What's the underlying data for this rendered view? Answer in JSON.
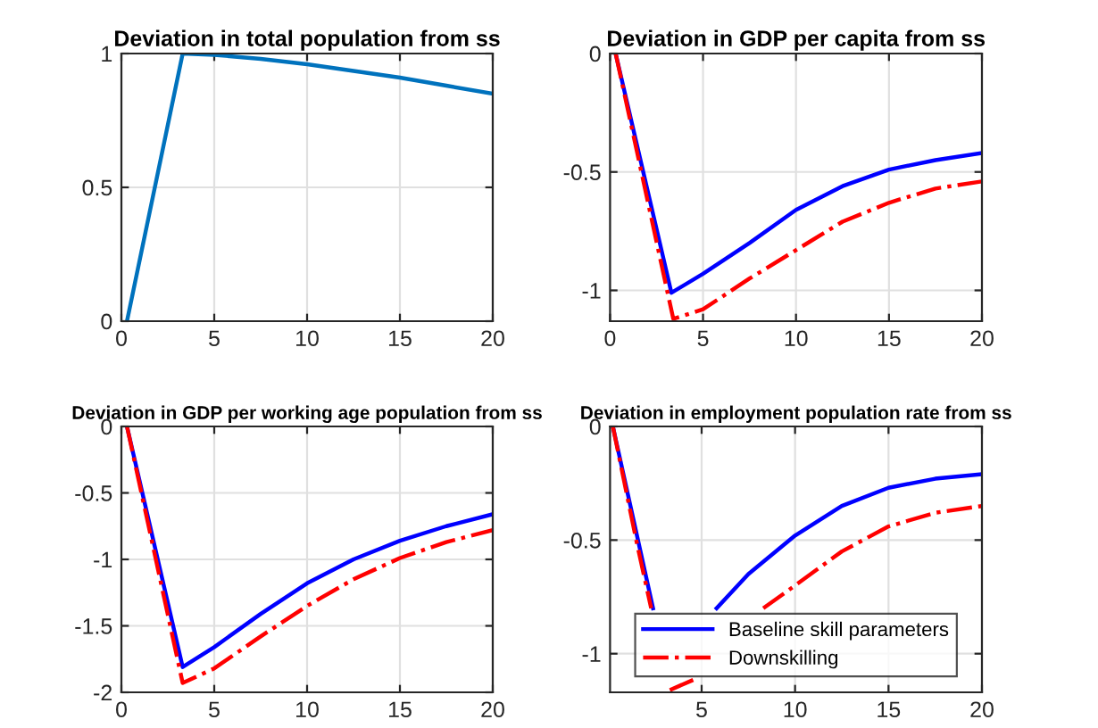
{
  "chart_data": [
    {
      "type": "line",
      "title": "Deviation in total population from ss",
      "xlim": [
        0,
        20
      ],
      "xticks": [
        0,
        5,
        10,
        15,
        20
      ],
      "ylim": [
        0,
        1
      ],
      "yticks": [
        0,
        0.5,
        1
      ],
      "grid": true,
      "legend": false,
      "series": [
        {
          "color": "#0072bd",
          "line_style": "solid",
          "x": [
            0.3,
            3.3,
            5,
            7.5,
            10,
            12.5,
            15,
            17.5,
            20
          ],
          "values": [
            0,
            1,
            0.995,
            0.98,
            0.96,
            0.935,
            0.91,
            0.88,
            0.85
          ]
        }
      ]
    },
    {
      "type": "line",
      "title": "Deviation in GDP per capita from ss",
      "xlim": [
        0,
        20
      ],
      "xticks": [
        0,
        5,
        10,
        15,
        20
      ],
      "ylim": [
        -1.13,
        0
      ],
      "yticks": [
        -1,
        -0.5,
        0
      ],
      "grid": true,
      "legend": false,
      "series": [
        {
          "color": "#0000ff",
          "line_style": "solid",
          "x": [
            0.3,
            3.3,
            5,
            7.5,
            10,
            12.5,
            15,
            17.5,
            20
          ],
          "values": [
            0,
            -1.01,
            -0.93,
            -0.8,
            -0.66,
            -0.56,
            -0.49,
            -0.45,
            -0.42
          ]
        },
        {
          "color": "#ff0000",
          "line_style": "dashdot",
          "x": [
            0.3,
            3.4,
            5,
            7.5,
            10,
            12.5,
            15,
            17.5,
            20
          ],
          "values": [
            0,
            -1.12,
            -1.08,
            -0.95,
            -0.83,
            -0.71,
            -0.63,
            -0.57,
            -0.54
          ]
        }
      ]
    },
    {
      "type": "line",
      "title": "Deviation in GDP per working age population from ss",
      "xlim": [
        0,
        20
      ],
      "xticks": [
        0,
        5,
        10,
        15,
        20
      ],
      "ylim": [
        -2,
        0
      ],
      "yticks": [
        -2,
        -1.5,
        -1,
        -0.5,
        0
      ],
      "grid": true,
      "legend": false,
      "series": [
        {
          "color": "#0000ff",
          "line_style": "solid",
          "x": [
            0.3,
            3.3,
            5,
            7.5,
            10,
            12.5,
            15,
            17.5,
            20
          ],
          "values": [
            0,
            -1.81,
            -1.66,
            -1.41,
            -1.18,
            -1.0,
            -0.86,
            -0.75,
            -0.66
          ]
        },
        {
          "color": "#ff0000",
          "line_style": "dashdot",
          "x": [
            0.3,
            3.3,
            5,
            7.5,
            10,
            12.5,
            15,
            17.5,
            20
          ],
          "values": [
            0,
            -1.93,
            -1.82,
            -1.58,
            -1.35,
            -1.15,
            -0.99,
            -0.87,
            -0.78
          ]
        }
      ]
    },
    {
      "type": "line",
      "title": "Deviation in employment population rate from ss",
      "xlim": [
        0.1,
        20
      ],
      "xticks": [
        5,
        10,
        15,
        20
      ],
      "ylim": [
        -1.17,
        0
      ],
      "yticks": [
        -1,
        -0.5,
        0
      ],
      "grid": true,
      "legend": "bottom",
      "series": [
        {
          "name": "Baseline skill parameters",
          "color": "#0000ff",
          "line_style": "solid",
          "x": [
            0.25,
            2.4,
            4.0,
            5.8,
            7.5,
            10,
            12.5,
            15,
            17.5,
            20
          ],
          "values": [
            0,
            -0.8,
            null,
            -0.8,
            -0.65,
            -0.48,
            -0.35,
            -0.27,
            -0.23,
            -0.21
          ]
        },
        {
          "name": "Downskilling",
          "color": "#ff0000",
          "line_style": "dashdot",
          "x": [
            0.25,
            1.5,
            2.3,
            2.8,
            3.3,
            4.7,
            6.0,
            8.3,
            10,
            12.5,
            15,
            17.5,
            20
          ],
          "values": [
            0,
            -0.5,
            -0.8,
            null,
            -1.16,
            -1.11,
            null,
            -0.8,
            -0.7,
            -0.55,
            -0.44,
            -0.38,
            -0.35
          ]
        }
      ]
    }
  ]
}
